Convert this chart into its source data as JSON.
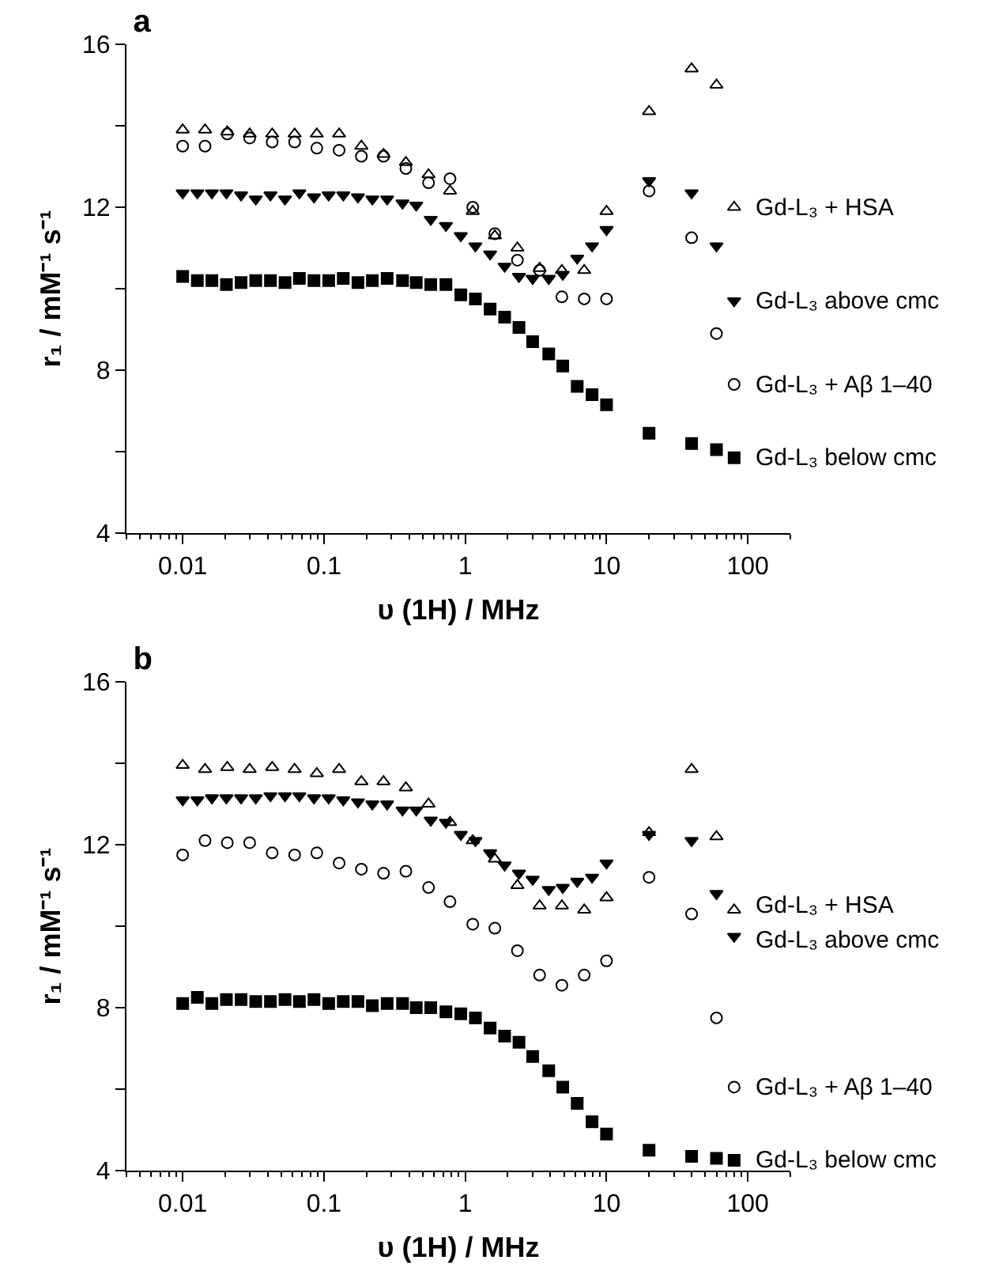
{
  "chart_data": [
    {
      "type": "scatter",
      "title": "a",
      "xlabel": "υ (1H) / MHz",
      "ylabel": "r₁ / mM⁻¹ s⁻¹",
      "log": "x",
      "grid": false,
      "legend": false,
      "xlim": [
        0.004,
        200
      ],
      "xticks": [
        {
          "value": 0.004,
          "label": null
        },
        {
          "value": 0.005,
          "label": null
        },
        {
          "value": 0.006,
          "label": null
        },
        {
          "value": 0.007,
          "label": null
        },
        {
          "value": 0.008,
          "label": null
        },
        {
          "value": 0.009,
          "label": null
        },
        0.01,
        {
          "value": 0.02,
          "label": null
        },
        {
          "value": 0.03,
          "label": null
        },
        {
          "value": 0.04,
          "label": null
        },
        {
          "value": 0.05,
          "label": null
        },
        {
          "value": 0.06,
          "label": null
        },
        {
          "value": 0.07,
          "label": null
        },
        {
          "value": 0.08,
          "label": null
        },
        {
          "value": 0.09,
          "label": null
        },
        0.1,
        {
          "value": 0.2,
          "label": null
        },
        {
          "value": 0.3,
          "label": null
        },
        {
          "value": 0.4,
          "label": null
        },
        {
          "value": 0.5,
          "label": null
        },
        {
          "value": 0.6,
          "label": null
        },
        {
          "value": 0.7,
          "label": null
        },
        {
          "value": 0.8,
          "label": null
        },
        {
          "value": 0.9,
          "label": null
        },
        1,
        {
          "value": 2,
          "label": null
        },
        {
          "value": 3,
          "label": null
        },
        {
          "value": 4,
          "label": null
        },
        {
          "value": 5,
          "label": null
        },
        {
          "value": 6,
          "label": null
        },
        {
          "value": 7,
          "label": null
        },
        {
          "value": 8,
          "label": null
        },
        {
          "value": 9,
          "label": null
        },
        10,
        {
          "value": 20,
          "label": null
        },
        {
          "value": 30,
          "label": null
        },
        {
          "value": 40,
          "label": null
        },
        {
          "value": 50,
          "label": null
        },
        {
          "value": 60,
          "label": null
        },
        {
          "value": 70,
          "label": null
        },
        {
          "value": 80,
          "label": null
        },
        {
          "value": 90,
          "label": null
        },
        100,
        {
          "value": 200,
          "label": null
        }
      ],
      "ylim": [
        4,
        16
      ],
      "yticks": [
        4,
        {
          "value": 6,
          "label": null
        },
        8,
        {
          "value": 10,
          "label": null
        },
        12,
        {
          "value": 14,
          "label": null
        },
        16
      ],
      "series": [
        {
          "name": "Gd-L₃ + HSA",
          "color": "#000000",
          "marker": "triangle-open",
          "x": [
            0.01,
            0.0144,
            0.0207,
            0.0298,
            0.043,
            0.062,
            0.089,
            0.128,
            0.184,
            0.264,
            0.38,
            0.55,
            0.78,
            1.13,
            1.62,
            2.34,
            3.36,
            4.83,
            6.95,
            10,
            20,
            40,
            60,
            80
          ],
          "values": [
            13.9,
            13.9,
            13.85,
            13.8,
            13.8,
            13.8,
            13.8,
            13.8,
            13.5,
            13.3,
            13.1,
            12.8,
            12.4,
            11.9,
            11.3,
            11.0,
            10.5,
            10.45,
            10.45,
            11.9,
            14.35,
            15.4,
            15.0,
            12.0
          ]
        },
        {
          "name": "Gd-L₃ above cmc",
          "color": "#000000",
          "marker": "triangle-down",
          "x": [
            0.01,
            0.0127,
            0.0161,
            0.0204,
            0.0259,
            0.0329,
            0.0418,
            0.053,
            0.067,
            0.085,
            0.108,
            0.137,
            0.174,
            0.22,
            0.28,
            0.36,
            0.45,
            0.57,
            0.73,
            0.93,
            1.18,
            1.5,
            1.9,
            2.4,
            3,
            3.9,
            4.9,
            6.2,
            7.9,
            10,
            20,
            40,
            60,
            80
          ],
          "values": [
            12.35,
            12.35,
            12.35,
            12.35,
            12.3,
            12.2,
            12.3,
            12.2,
            12.35,
            12.25,
            12.3,
            12.3,
            12.25,
            12.2,
            12.2,
            12.1,
            12.05,
            11.7,
            11.55,
            11.3,
            11.05,
            10.85,
            10.55,
            10.3,
            10.25,
            10.25,
            10.35,
            10.75,
            11.05,
            11.45,
            12.65,
            12.35,
            11.05,
            9.7
          ]
        },
        {
          "name": "Gd-L₃ + Aβ 1–40",
          "color": "#000000",
          "marker": "circle-open",
          "x": [
            0.01,
            0.0144,
            0.0207,
            0.0298,
            0.043,
            0.062,
            0.089,
            0.128,
            0.184,
            0.264,
            0.38,
            0.55,
            0.78,
            1.13,
            1.62,
            2.34,
            3.36,
            4.83,
            6.95,
            10,
            20,
            40,
            60,
            80
          ],
          "values": [
            13.5,
            13.5,
            13.8,
            13.7,
            13.6,
            13.6,
            13.45,
            13.4,
            13.25,
            13.25,
            12.95,
            12.6,
            12.7,
            12.0,
            11.35,
            10.7,
            10.45,
            9.8,
            9.75,
            9.75,
            12.4,
            11.25,
            8.9,
            7.65
          ]
        },
        {
          "name": "Gd-L₃ below cmc",
          "color": "#000000",
          "marker": "square",
          "x": [
            0.01,
            0.0127,
            0.0161,
            0.0204,
            0.0259,
            0.0329,
            0.0418,
            0.053,
            0.067,
            0.085,
            0.108,
            0.137,
            0.174,
            0.22,
            0.28,
            0.36,
            0.45,
            0.57,
            0.73,
            0.93,
            1.18,
            1.5,
            1.9,
            2.4,
            3,
            3.9,
            4.9,
            6.2,
            7.9,
            10,
            20,
            40,
            60,
            80
          ],
          "values": [
            10.3,
            10.2,
            10.2,
            10.1,
            10.15,
            10.2,
            10.2,
            10.15,
            10.25,
            10.2,
            10.2,
            10.25,
            10.15,
            10.2,
            10.25,
            10.2,
            10.15,
            10.1,
            10.1,
            9.85,
            9.75,
            9.5,
            9.3,
            9.05,
            8.7,
            8.4,
            8.1,
            7.6,
            7.4,
            7.15,
            6.45,
            6.2,
            6.05,
            5.85
          ]
        }
      ]
    },
    {
      "type": "scatter",
      "title": "b",
      "xlabel": "υ (1H) / MHz",
      "ylabel": "r₁ / mM⁻¹ s⁻¹",
      "log": "x",
      "grid": false,
      "legend": false,
      "xlim": [
        0.004,
        200
      ],
      "xticks": [
        {
          "value": 0.004,
          "label": null
        },
        {
          "value": 0.005,
          "label": null
        },
        {
          "value": 0.006,
          "label": null
        },
        {
          "value": 0.007,
          "label": null
        },
        {
          "value": 0.008,
          "label": null
        },
        {
          "value": 0.009,
          "label": null
        },
        0.01,
        {
          "value": 0.02,
          "label": null
        },
        {
          "value": 0.03,
          "label": null
        },
        {
          "value": 0.04,
          "label": null
        },
        {
          "value": 0.05,
          "label": null
        },
        {
          "value": 0.06,
          "label": null
        },
        {
          "value": 0.07,
          "label": null
        },
        {
          "value": 0.08,
          "label": null
        },
        {
          "value": 0.09,
          "label": null
        },
        0.1,
        {
          "value": 0.2,
          "label": null
        },
        {
          "value": 0.3,
          "label": null
        },
        {
          "value": 0.4,
          "label": null
        },
        {
          "value": 0.5,
          "label": null
        },
        {
          "value": 0.6,
          "label": null
        },
        {
          "value": 0.7,
          "label": null
        },
        {
          "value": 0.8,
          "label": null
        },
        {
          "value": 0.9,
          "label": null
        },
        1,
        {
          "value": 2,
          "label": null
        },
        {
          "value": 3,
          "label": null
        },
        {
          "value": 4,
          "label": null
        },
        {
          "value": 5,
          "label": null
        },
        {
          "value": 6,
          "label": null
        },
        {
          "value": 7,
          "label": null
        },
        {
          "value": 8,
          "label": null
        },
        {
          "value": 9,
          "label": null
        },
        10,
        {
          "value": 20,
          "label": null
        },
        {
          "value": 30,
          "label": null
        },
        {
          "value": 40,
          "label": null
        },
        {
          "value": 50,
          "label": null
        },
        {
          "value": 60,
          "label": null
        },
        {
          "value": 70,
          "label": null
        },
        {
          "value": 80,
          "label": null
        },
        {
          "value": 90,
          "label": null
        },
        100,
        {
          "value": 200,
          "label": null
        }
      ],
      "ylim": [
        4,
        16
      ],
      "yticks": [
        4,
        {
          "value": 6,
          "label": null
        },
        8,
        {
          "value": 10,
          "label": null
        },
        12,
        {
          "value": 14,
          "label": null
        },
        16
      ],
      "series": [
        {
          "name": "Gd-L₃ + HSA",
          "color": "#000000",
          "marker": "triangle-open",
          "x": [
            0.01,
            0.0144,
            0.0207,
            0.0298,
            0.043,
            0.062,
            0.089,
            0.128,
            0.184,
            0.264,
            0.38,
            0.55,
            0.78,
            1.13,
            1.62,
            2.34,
            3.36,
            4.83,
            6.95,
            10,
            20,
            40,
            60,
            80
          ],
          "values": [
            13.95,
            13.85,
            13.9,
            13.85,
            13.9,
            13.85,
            13.75,
            13.85,
            13.55,
            13.55,
            13.4,
            13.0,
            12.55,
            12.1,
            11.65,
            11.0,
            10.5,
            10.5,
            10.4,
            10.7,
            12.3,
            13.85,
            12.2,
            10.4
          ]
        },
        {
          "name": "Gd-L₃ above cmc",
          "color": "#000000",
          "marker": "triangle-down",
          "x": [
            0.01,
            0.0127,
            0.0161,
            0.0204,
            0.0259,
            0.0329,
            0.0418,
            0.053,
            0.067,
            0.085,
            0.108,
            0.137,
            0.174,
            0.22,
            0.28,
            0.36,
            0.45,
            0.57,
            0.73,
            0.93,
            1.18,
            1.5,
            1.9,
            2.4,
            3,
            3.9,
            4.9,
            6.2,
            7.9,
            10,
            20,
            40,
            60,
            80
          ],
          "values": [
            13.1,
            13.1,
            13.15,
            13.15,
            13.15,
            13.15,
            13.2,
            13.2,
            13.2,
            13.15,
            13.15,
            13.1,
            13.05,
            13.0,
            13.0,
            12.85,
            12.85,
            12.6,
            12.55,
            12.25,
            12.1,
            11.8,
            11.5,
            11.3,
            11.15,
            10.9,
            10.95,
            11.1,
            11.2,
            11.55,
            12.25,
            12.1,
            10.8,
            9.75
          ]
        },
        {
          "name": "Gd-L₃ + Aβ 1–40",
          "color": "#000000",
          "marker": "circle-open",
          "x": [
            0.01,
            0.0144,
            0.0207,
            0.0298,
            0.043,
            0.062,
            0.089,
            0.128,
            0.184,
            0.264,
            0.38,
            0.55,
            0.78,
            1.13,
            1.62,
            2.34,
            3.36,
            4.83,
            6.95,
            10,
            20,
            40,
            60,
            80
          ],
          "values": [
            11.75,
            12.1,
            12.05,
            12.05,
            11.8,
            11.75,
            11.8,
            11.55,
            11.4,
            11.3,
            11.35,
            10.95,
            10.6,
            10.05,
            9.95,
            9.4,
            8.8,
            8.55,
            8.8,
            9.15,
            11.2,
            10.3,
            7.75,
            6.05
          ]
        },
        {
          "name": "Gd-L₃ below cmc",
          "color": "#000000",
          "marker": "square",
          "x": [
            0.01,
            0.0127,
            0.0161,
            0.0204,
            0.0259,
            0.0329,
            0.0418,
            0.053,
            0.067,
            0.085,
            0.108,
            0.137,
            0.174,
            0.22,
            0.28,
            0.36,
            0.45,
            0.57,
            0.73,
            0.93,
            1.18,
            1.5,
            1.9,
            2.4,
            3,
            3.9,
            4.9,
            6.2,
            7.9,
            10,
            20,
            40,
            60,
            80
          ],
          "values": [
            8.1,
            8.25,
            8.1,
            8.2,
            8.2,
            8.15,
            8.15,
            8.2,
            8.15,
            8.2,
            8.1,
            8.15,
            8.15,
            8.05,
            8.1,
            8.1,
            8.0,
            8.0,
            7.9,
            7.85,
            7.75,
            7.5,
            7.3,
            7.15,
            6.8,
            6.45,
            6.05,
            5.65,
            5.2,
            4.9,
            4.5,
            4.35,
            4.3,
            4.25
          ]
        }
      ]
    }
  ]
}
